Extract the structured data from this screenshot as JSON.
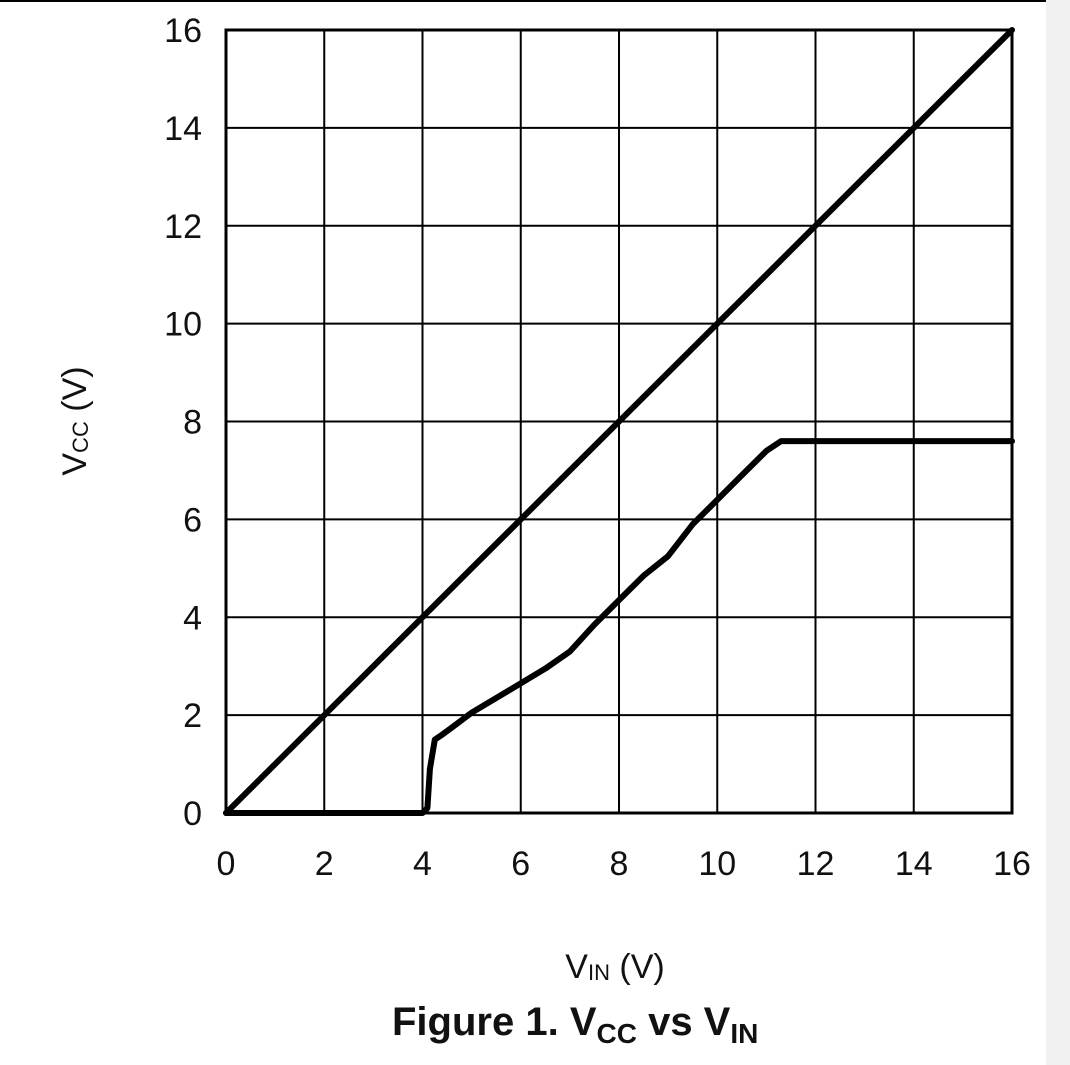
{
  "chart_data": {
    "type": "line",
    "xlabel": {
      "main": "V",
      "sub": "IN",
      "unit": " (V)"
    },
    "ylabel": {
      "main": "V",
      "sub": "CC",
      "unit": " (V)"
    },
    "xlim": [
      0,
      16
    ],
    "ylim": [
      0,
      16
    ],
    "x_ticks": [
      "0",
      "2",
      "4",
      "6",
      "8",
      "10",
      "12",
      "14",
      "16"
    ],
    "y_ticks": [
      "0",
      "2",
      "4",
      "6",
      "8",
      "10",
      "12",
      "14",
      "16"
    ],
    "grid": true,
    "series": [
      {
        "color": "#000000",
        "x": [
          0,
          0.5,
          1,
          2,
          3,
          4,
          5,
          6,
          7,
          8,
          9,
          10,
          11,
          12,
          13,
          14,
          15,
          16
        ],
        "y": [
          0,
          0.5,
          1,
          2,
          3,
          4,
          5,
          6,
          7,
          8,
          9,
          10,
          11,
          12,
          13,
          14,
          15,
          16
        ]
      },
      {
        "color": "#000000",
        "x": [
          0,
          3.9,
          4.0,
          4.1,
          4.15,
          4.25,
          4.4,
          4.6,
          5,
          6,
          6.5,
          7,
          7.5,
          8,
          8.5,
          9,
          9.5,
          10,
          10.5,
          11,
          11.3,
          12,
          14,
          16
        ],
        "y": [
          0,
          0,
          0,
          0.1,
          0.9,
          1.5,
          1.6,
          1.75,
          2.05,
          2.65,
          2.95,
          3.3,
          3.85,
          4.35,
          4.85,
          5.25,
          5.9,
          6.4,
          6.9,
          7.4,
          7.6,
          7.6,
          7.6,
          7.6
        ]
      }
    ]
  },
  "caption": {
    "prefix": "Figure 1. V",
    "sub1": "CC",
    "middle": " vs V",
    "sub2": "IN"
  }
}
